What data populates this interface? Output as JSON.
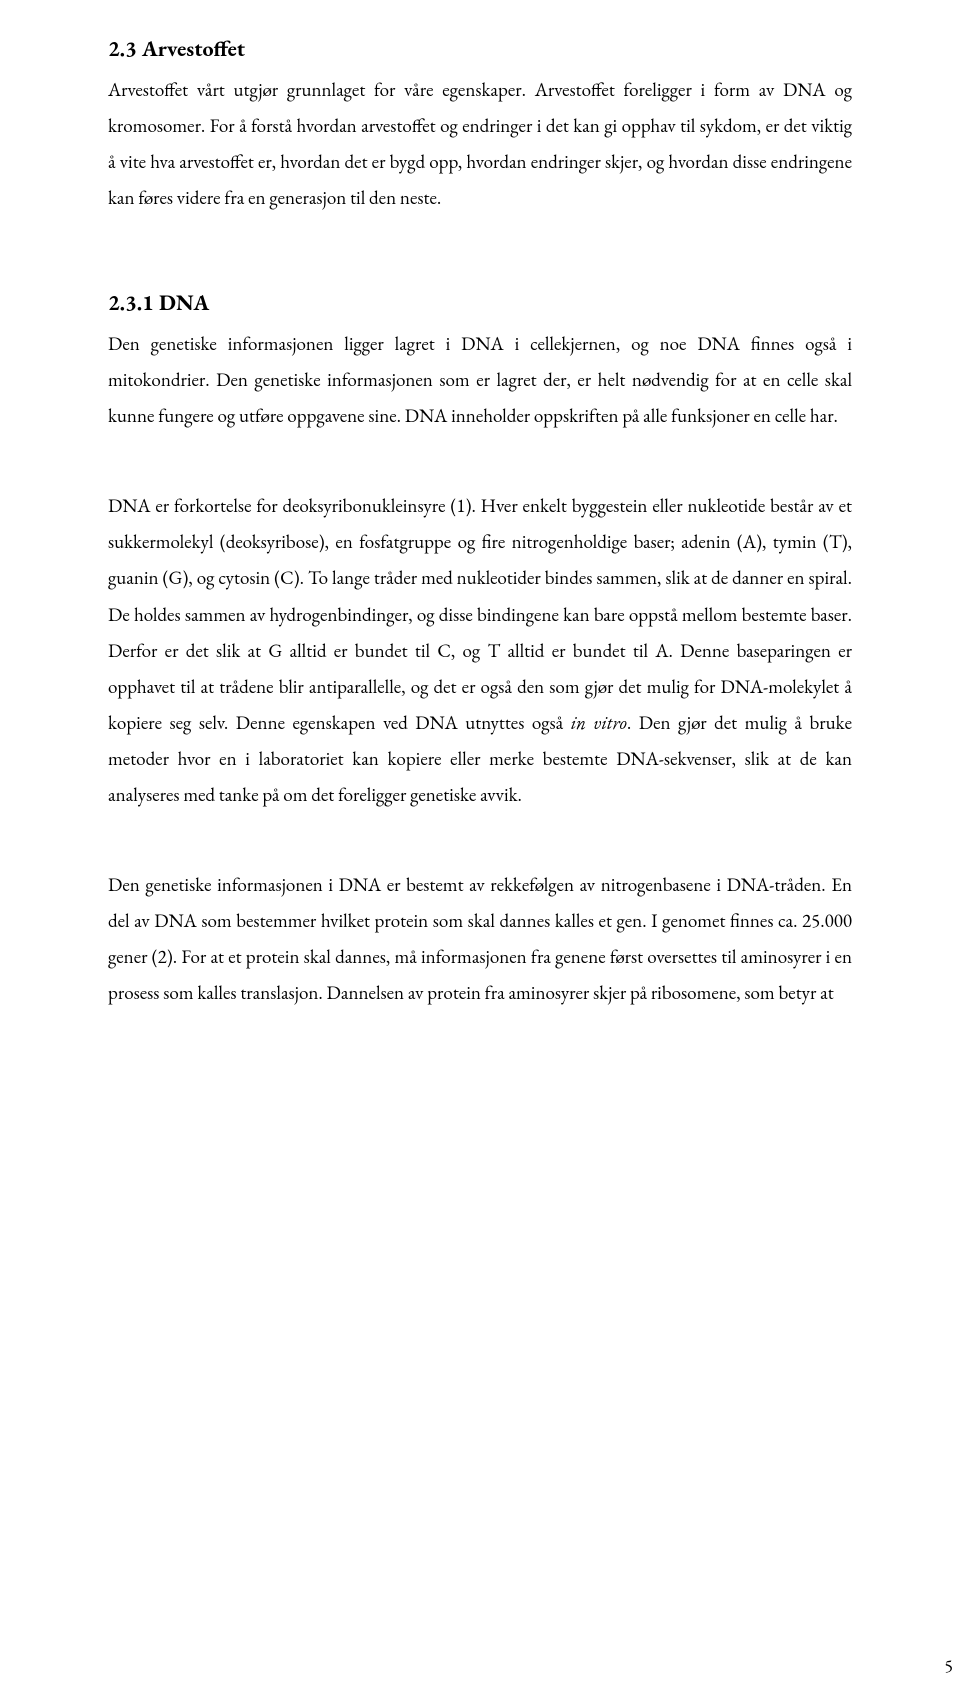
{
  "page": {
    "number": "5"
  },
  "section23": {
    "heading": "2.3 Arvestoffet",
    "p1_a": "Arvestoffet vårt utgjør grunnlaget for våre egenskaper. Arvestoffet foreligger i form av DNA og kromosomer. For å forstå hvordan arvestoffet og endringer i det kan gi opphav til sykdom, er det viktig å vite hva arvestoffet er, hvordan det er bygd opp, hvordan endringer skjer, og hvordan disse endringene kan føres videre fra en generasjon til den neste."
  },
  "section231": {
    "heading": "2.3.1 DNA",
    "p1": "Den genetiske informasjonen ligger lagret i DNA i cellekjernen, og noe DNA finnes også i mitokondrier. Den genetiske informasjonen som er lagret der, er helt nødvendig for at en celle skal kunne fungere og utføre oppgavene sine. DNA inneholder oppskriften på alle funksjoner en celle har.",
    "p2_a": "DNA er forkortelse for deoksyribonukleinsyre (1). Hver enkelt byggestein eller nukleotide består av et sukkermolekyl (deoksyribose), en fosfatgruppe og fire nitrogenholdige baser; adenin (A), tymin (T), guanin (G), og cytosin (C). To lange tråder med nukleotider bindes sammen, slik at de danner en spiral. De holdes sammen av hydrogenbindinger, og disse bindingene kan bare oppstå mellom bestemte baser. Derfor er det slik at G alltid er bundet til C, og T alltid er bundet til A. Denne baseparingen er opphavet til at trådene blir antiparallelle, og det er også den som gjør det mulig for DNA-molekylet å kopiere seg selv. Denne egenskapen ved DNA utnyttes også ",
    "p2_italic": "in vitro",
    "p2_b": ". Den gjør det mulig å bruke metoder hvor en i laboratoriet kan kopiere eller merke bestemte DNA-sekvenser,  slik at de kan analyseres med tanke på om det foreligger genetiske avvik.",
    "p3": "Den genetiske informasjonen i DNA er bestemt av rekkefølgen av nitrogenbasene i DNA-tråden. En del av DNA som bestemmer hvilket protein som skal dannes kalles et gen. I genomet finnes ca. 25.000 gener (2). For at et protein skal dannes, må informasjonen fra genene først oversettes til aminosyrer i en prosess som kalles translasjon. Dannelsen av protein fra aminosyrer skjer på ribosomene, som betyr at"
  }
}
